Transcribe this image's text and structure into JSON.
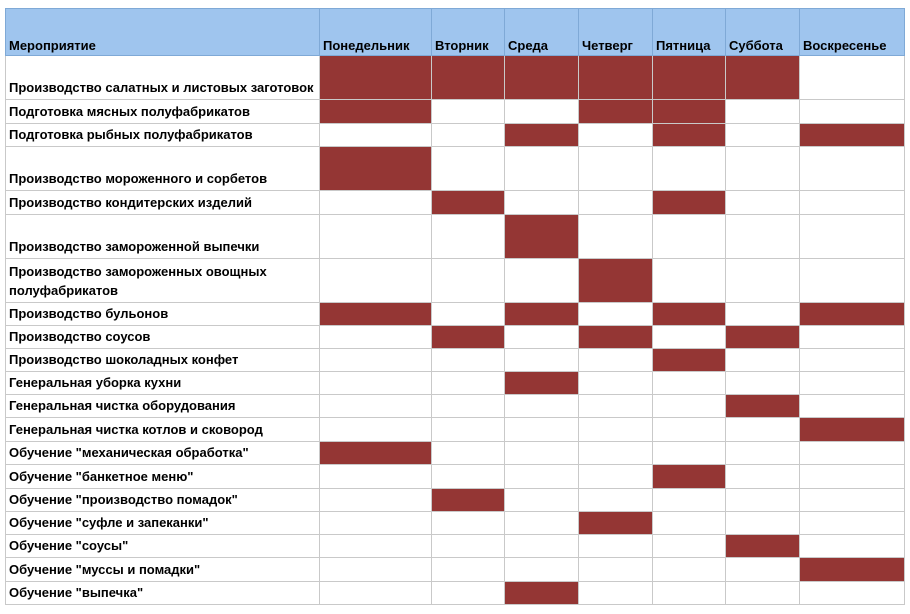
{
  "table": {
    "headers": [
      "Мероприятие",
      "Понедельник",
      "Вторник",
      "Среда",
      "Четверг",
      "Пятница",
      "Суббота",
      "Воскресенье"
    ],
    "fill_color": "#943634",
    "header_color": "#9fc5ee",
    "rows": [
      {
        "task": "Производство салатных и листовых заготовок",
        "days": [
          1,
          1,
          1,
          1,
          1,
          1,
          0
        ]
      },
      {
        "task": "Подготовка мясных полуфабрикатов",
        "days": [
          1,
          0,
          0,
          1,
          1,
          0,
          0
        ]
      },
      {
        "task": "Подготовка рыбных полуфабрикатов",
        "days": [
          0,
          0,
          1,
          0,
          1,
          0,
          1
        ]
      },
      {
        "task": "Производство мороженного и сорбетов",
        "days": [
          1,
          0,
          0,
          0,
          0,
          0,
          0
        ]
      },
      {
        "task": "Производство кондитерских изделий",
        "days": [
          0,
          1,
          0,
          0,
          1,
          0,
          0
        ]
      },
      {
        "task": "Производство замороженной выпечки",
        "days": [
          0,
          0,
          1,
          0,
          0,
          0,
          0
        ]
      },
      {
        "task": "Производство замороженных овощных полуфабрикатов",
        "days": [
          0,
          0,
          0,
          1,
          0,
          0,
          0
        ]
      },
      {
        "task": "Производство бульонов",
        "days": [
          1,
          0,
          1,
          0,
          1,
          0,
          1
        ]
      },
      {
        "task": "Производство соусов",
        "days": [
          0,
          1,
          0,
          1,
          0,
          1,
          0
        ]
      },
      {
        "task": "Производство шоколадных конфет",
        "days": [
          0,
          0,
          0,
          0,
          1,
          0,
          0
        ]
      },
      {
        "task": "Генеральная уборка кухни",
        "days": [
          0,
          0,
          1,
          0,
          0,
          0,
          0
        ]
      },
      {
        "task": "Генеральная чистка оборудования",
        "days": [
          0,
          0,
          0,
          0,
          0,
          1,
          0
        ]
      },
      {
        "task": "Генеральная чистка котлов и сковород",
        "days": [
          0,
          0,
          0,
          0,
          0,
          0,
          1
        ]
      },
      {
        "task": "Обучение \"механическая обработка\"",
        "days": [
          1,
          0,
          0,
          0,
          0,
          0,
          0
        ]
      },
      {
        "task": "Обучение \"банкетное меню\"",
        "days": [
          0,
          0,
          0,
          0,
          1,
          0,
          0
        ]
      },
      {
        "task": "Обучение \"производство помадок\"",
        "days": [
          0,
          1,
          0,
          0,
          0,
          0,
          0
        ]
      },
      {
        "task": "Обучение \"суфле и запеканки\"",
        "days": [
          0,
          0,
          0,
          1,
          0,
          0,
          0
        ]
      },
      {
        "task": "Обучение \"соусы\"",
        "days": [
          0,
          0,
          0,
          0,
          0,
          1,
          0
        ]
      },
      {
        "task": "Обучение \"муссы и помадки\"",
        "days": [
          0,
          0,
          0,
          0,
          0,
          0,
          1
        ]
      },
      {
        "task": "Обучение \"выпечка\"",
        "days": [
          0,
          0,
          1,
          0,
          0,
          0,
          0
        ]
      }
    ]
  }
}
